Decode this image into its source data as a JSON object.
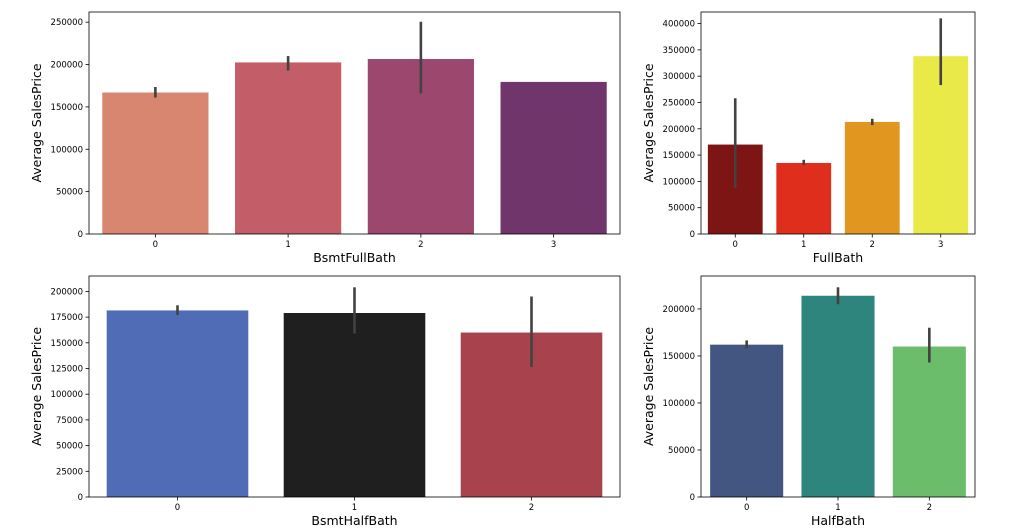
{
  "chart_data": [
    {
      "type": "bar",
      "xlabel": "BsmtFullBath",
      "ylabel": "Average SalesPrice",
      "categories": [
        "0",
        "1",
        "2",
        "3"
      ],
      "values": [
        167000,
        202500,
        206500,
        179500
      ],
      "error_low": [
        161000,
        193000,
        166000,
        null
      ],
      "error_high": [
        173500,
        210000,
        250500,
        null
      ],
      "colors": [
        "#d98670",
        "#c35d68",
        "#9c476e",
        "#70356a"
      ],
      "ylim": [
        0,
        262000
      ],
      "yticks": [
        0,
        50000,
        100000,
        150000,
        200000,
        250000
      ],
      "ytick_labels": [
        "0",
        "50000",
        "100000",
        "150000",
        "200000",
        "250000"
      ]
    },
    {
      "type": "bar",
      "xlabel": "FullBath",
      "ylabel": "Average SalesPrice",
      "categories": [
        "0",
        "1",
        "2",
        "3"
      ],
      "values": [
        170000,
        135000,
        213000,
        338000
      ],
      "error_low": [
        87000,
        131000,
        207000,
        283000
      ],
      "error_high": [
        258000,
        141000,
        219000,
        410000
      ],
      "colors": [
        "#7d1515",
        "#e02e1d",
        "#e0961f",
        "#e9e947"
      ],
      "ylim": [
        0,
        422000
      ],
      "yticks": [
        0,
        50000,
        100000,
        150000,
        200000,
        250000,
        300000,
        350000,
        400000
      ],
      "ytick_labels": [
        "0",
        "50000",
        "100000",
        "150000",
        "200000",
        "250000",
        "300000",
        "350000",
        "400000"
      ]
    },
    {
      "type": "bar",
      "xlabel": "BsmtHalfBath",
      "ylabel": "Average SalesPrice",
      "categories": [
        "0",
        "1",
        "2"
      ],
      "values": [
        181500,
        179000,
        160000
      ],
      "error_low": [
        177000,
        159000,
        126500
      ],
      "error_high": [
        186500,
        204000,
        195000
      ],
      "colors": [
        "#506cb7",
        "#1f1f1f",
        "#a8434d"
      ],
      "ylim": [
        0,
        215000
      ],
      "yticks": [
        0,
        25000,
        50000,
        75000,
        100000,
        125000,
        150000,
        175000,
        200000
      ],
      "ytick_labels": [
        "0",
        "25000",
        "50000",
        "75000",
        "100000",
        "125000",
        "150000",
        "175000",
        "200000"
      ]
    },
    {
      "type": "bar",
      "xlabel": "HalfBath",
      "ylabel": "Average SalesPrice",
      "categories": [
        "0",
        "1",
        "2"
      ],
      "values": [
        162000,
        214000,
        160000
      ],
      "error_low": [
        158000,
        205000,
        143000
      ],
      "error_high": [
        166500,
        223000,
        180000
      ],
      "colors": [
        "#435682",
        "#2d857e",
        "#6cbd6b"
      ],
      "ylim": [
        0,
        235000
      ],
      "yticks": [
        0,
        50000,
        100000,
        150000,
        200000
      ],
      "ytick_labels": [
        "0",
        "50000",
        "100000",
        "150000",
        "200000"
      ]
    }
  ]
}
